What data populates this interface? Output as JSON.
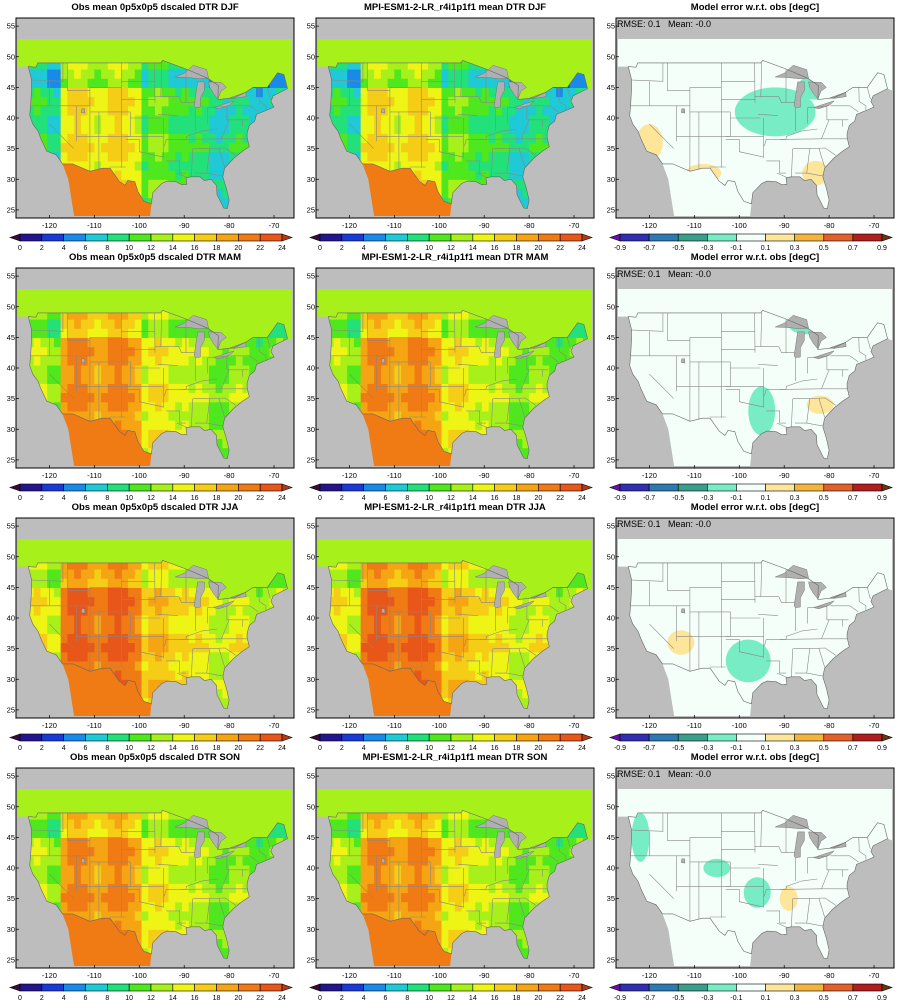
{
  "figure": {
    "rows": [
      {
        "season": "DJF",
        "panels": [
          {
            "title": "Obs mean 0p5x0p5 dscaled DTR DJF",
            "kind": "mean"
          },
          {
            "title": "MPI-ESM1-2-LR_r4i1p1f1 mean DTR DJF",
            "kind": "mean"
          },
          {
            "title": "Model error w.r.t. obs [degC]",
            "kind": "error",
            "rmse_text": "RMSE: 0.1",
            "mean_text": "Mean: -0.0"
          }
        ]
      },
      {
        "season": "MAM",
        "panels": [
          {
            "title": "Obs mean 0p5x0p5 dscaled DTR MAM",
            "kind": "mean"
          },
          {
            "title": "MPI-ESM1-2-LR_r4i1p1f1 mean DTR MAM",
            "kind": "mean"
          },
          {
            "title": "Model error w.r.t. obs [degC]",
            "kind": "error",
            "rmse_text": "RMSE: 0.1",
            "mean_text": "Mean: -0.0"
          }
        ]
      },
      {
        "season": "JJA",
        "panels": [
          {
            "title": "Obs mean 0p5x0p5 dscaled DTR JJA",
            "kind": "mean"
          },
          {
            "title": "MPI-ESM1-2-LR_r4i1p1f1 mean DTR JJA",
            "kind": "mean"
          },
          {
            "title": "Model error w.r.t. obs [degC]",
            "kind": "error",
            "rmse_text": "RMSE: 0.1",
            "mean_text": "Mean: -0.0"
          }
        ]
      },
      {
        "season": "SON",
        "panels": [
          {
            "title": "Obs mean 0p5x0p5 dscaled DTR SON",
            "kind": "mean"
          },
          {
            "title": "MPI-ESM1-2-LR_r4i1p1f1 mean DTR SON",
            "kind": "mean"
          },
          {
            "title": "Model error w.r.t. obs [degC]",
            "kind": "error",
            "rmse_text": "RMSE: 0.1",
            "mean_text": "Mean: -0.0"
          }
        ]
      }
    ],
    "map_axes": {
      "lon_ticks": [
        -120,
        -110,
        -100,
        -90,
        -80,
        -70
      ],
      "lat_ticks": [
        25,
        30,
        35,
        40,
        45,
        50,
        55
      ],
      "lon_range": [
        -127,
        -66
      ],
      "lat_range": [
        24,
        56
      ]
    },
    "mean_colorbar": {
      "labels": [
        "0",
        "2",
        "4",
        "6",
        "8",
        "10",
        "12",
        "14",
        "16",
        "18",
        "20",
        "22",
        "24"
      ],
      "colors": [
        "#3a0a3a",
        "#23168c",
        "#1a3ad6",
        "#1a8ae8",
        "#1fc9d6",
        "#22e07a",
        "#4fe71e",
        "#a8f01a",
        "#eef514",
        "#f5cc16",
        "#f5a513",
        "#f07a14",
        "#e8561a",
        "#b23a14"
      ]
    },
    "error_colorbar": {
      "labels": [
        "-0.9",
        "-0.7",
        "-0.5",
        "-0.3",
        "-0.1",
        "0.1",
        "0.3",
        "0.5",
        "0.7",
        "0.9"
      ],
      "colors": [
        "#6a0cb4",
        "#2f2fb0",
        "#2e7ab0",
        "#3a9e8a",
        "#78ecc4",
        "#f4fffa",
        "#fde59a",
        "#f2b43c",
        "#e2602a",
        "#b01e1e",
        "#6e3410"
      ]
    },
    "land_color": "#bdbdbd",
    "lake_color": "#b0b0b0"
  }
}
